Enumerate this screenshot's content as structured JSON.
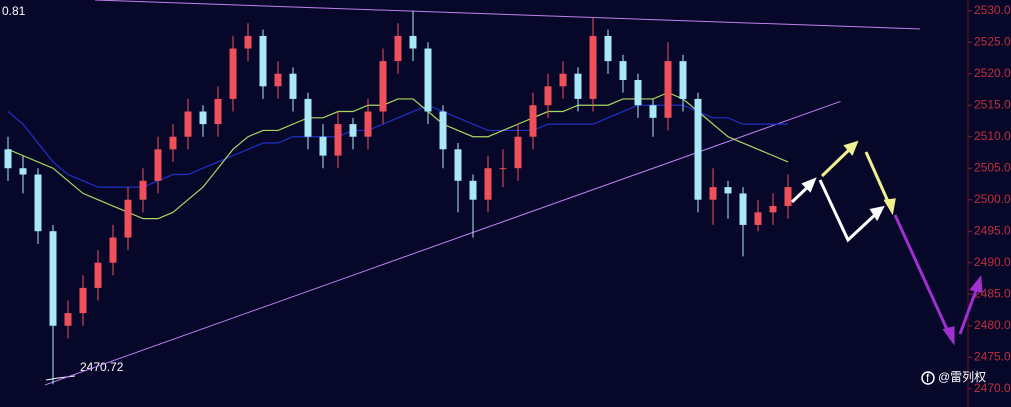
{
  "chart_data": {
    "type": "candlestick",
    "corner_label": "0.81",
    "low_label": "2470.72",
    "watermark": "@雷列权",
    "ylim": [
      2467.1,
      2531.7
    ],
    "yticks": [
      {
        "value": 2530,
        "label": "2530.0"
      },
      {
        "value": 2525,
        "label": "2525.0"
      },
      {
        "value": 2520,
        "label": "2520.0"
      },
      {
        "value": 2515,
        "label": "2515.0"
      },
      {
        "value": 2510,
        "label": "2510.0"
      },
      {
        "value": 2505,
        "label": "2505.0"
      },
      {
        "value": 2500,
        "label": "2500.0"
      },
      {
        "value": 2495,
        "label": "2495.0"
      },
      {
        "value": 2490,
        "label": "2490.0"
      },
      {
        "value": 2485,
        "label": "2485.0"
      },
      {
        "value": 2480,
        "label": "2480.0"
      },
      {
        "value": 2475,
        "label": "2475.0"
      },
      {
        "value": 2470,
        "label": "2470.0"
      }
    ],
    "up_color": "#f0505a",
    "down_color": "#a8e8f8",
    "open": [
      2508,
      2505,
      2504,
      2495,
      2480,
      2482,
      2486,
      2490,
      2494,
      2500,
      2503,
      2508,
      2510,
      2514,
      2512,
      2516,
      2524,
      2526,
      2518,
      2520,
      2516,
      2510,
      2507,
      2512,
      2510,
      2514,
      2522,
      2526,
      2524,
      2514,
      2508,
      2503,
      2500,
      2505,
      2505,
      2510,
      2515,
      2518,
      2520,
      2516,
      2526,
      2522,
      2519,
      2515,
      2513,
      2522,
      2516,
      2500,
      2502,
      2501,
      2496,
      2498,
      2499
    ],
    "close": [
      2505,
      2504,
      2495,
      2480,
      2482,
      2486,
      2490,
      2494,
      2500,
      2503,
      2508,
      2510,
      2514,
      2512,
      2516,
      2524,
      2526,
      2518,
      2520,
      2516,
      2510,
      2507,
      2512,
      2510,
      2514,
      2522,
      2526,
      2524,
      2514,
      2508,
      2503,
      2500,
      2505,
      2505,
      2510,
      2515,
      2518,
      2520,
      2516,
      2526,
      2522,
      2519,
      2515,
      2513,
      2522,
      2516,
      2500,
      2502,
      2501,
      2496,
      2498,
      2499,
      2502
    ],
    "high": [
      2510,
      2507,
      2505,
      2496,
      2484,
      2488,
      2492,
      2496,
      2502,
      2505,
      2510,
      2512,
      2516,
      2515,
      2518,
      2526,
      2528,
      2527,
      2522,
      2521,
      2517,
      2512,
      2514,
      2513,
      2516,
      2524,
      2528,
      2530,
      2525,
      2515,
      2509,
      2504,
      2507,
      2508,
      2512,
      2517,
      2520,
      2522,
      2521,
      2529,
      2527,
      2523,
      2520,
      2516,
      2525,
      2523,
      2517,
      2505,
      2503,
      2502,
      2500,
      2501,
      2504
    ],
    "low": [
      2503,
      2501,
      2493,
      2470.72,
      2478,
      2480,
      2484,
      2488,
      2492,
      2498,
      2501,
      2506,
      2508,
      2510,
      2510,
      2514,
      2522,
      2516,
      2516,
      2514,
      2508,
      2505,
      2505,
      2508,
      2508,
      2512,
      2520,
      2522,
      2512,
      2505,
      2498,
      2494,
      2498,
      2502,
      2503,
      2508,
      2513,
      2516,
      2514,
      2514,
      2520,
      2517,
      2513,
      2510,
      2511,
      2514,
      2498,
      2496,
      2497,
      2491,
      2495,
      2496,
      2497
    ],
    "series": [
      {
        "color": "#2030c8",
        "values": [
          2514,
          2512,
          2509,
          2506,
          2504,
          2503,
          2502,
          2502,
          2502,
          2502,
          2503,
          2504,
          2504,
          2505,
          2506,
          2507,
          2508,
          2509,
          2509,
          2510,
          2510,
          2510,
          2510,
          2511,
          2511,
          2512,
          2513,
          2514,
          2515,
          2514,
          2513,
          2512,
          2511,
          2511,
          2511,
          2511,
          2512,
          2512,
          2512,
          2512,
          2513,
          2514,
          2515,
          2515,
          2515,
          2515,
          2514,
          2513,
          2513,
          2512,
          2512,
          2512,
          2512
        ]
      },
      {
        "color": "#a8d860",
        "values": [
          2508,
          2507,
          2506,
          2505,
          2503,
          2501,
          2500,
          2499,
          2498,
          2497,
          2497,
          2498,
          2500,
          2502,
          2505,
          2508,
          2510,
          2511,
          2511,
          2512,
          2513,
          2513,
          2514,
          2514,
          2515,
          2515,
          2516,
          2516,
          2514,
          2512,
          2511,
          2510,
          2510,
          2511,
          2512,
          2513,
          2514,
          2514,
          2515,
          2515,
          2515,
          2516,
          2516,
          2516,
          2517,
          2516,
          2514,
          2512,
          2510,
          2509,
          2508,
          2507,
          2506
        ]
      }
    ],
    "trendlines": [
      {
        "color": "#c080f0",
        "x": [
          5.8,
          60.8
        ],
        "values": [
          2531.7,
          2527.1
        ]
      },
      {
        "color": "#c080f0",
        "x": [
          2.47,
          55.5
        ],
        "values": [
          2470.6,
          2515.6
        ]
      }
    ]
  }
}
